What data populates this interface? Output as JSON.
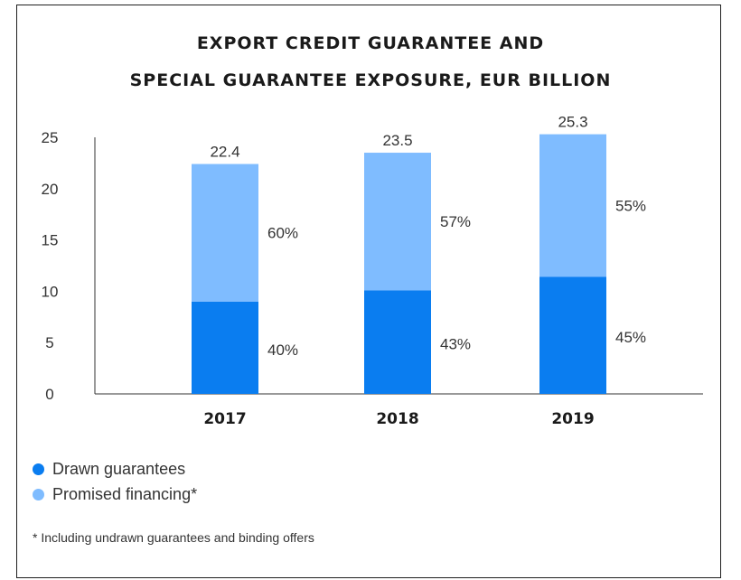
{
  "chart_data": {
    "type": "bar",
    "stacked": true,
    "title": "EXPORT CREDIT GUARANTEE AND SPECIAL GUARANTEE EXPOSURE, EUR BILLION",
    "title_lines": [
      "EXPORT CREDIT GUARANTEE AND",
      "SPECIAL GUARANTEE EXPOSURE, EUR BILLION"
    ],
    "categories": [
      "2017",
      "2018",
      "2019"
    ],
    "totals": [
      22.4,
      23.5,
      25.3
    ],
    "total_labels": [
      "22.4",
      "23.5",
      "25.3"
    ],
    "series": [
      {
        "name": "Drawn guarantees",
        "color": "#0a7df0",
        "share_labels": [
          "40%",
          "43%",
          "45%"
        ],
        "values": [
          9.0,
          10.1,
          11.4
        ]
      },
      {
        "name": "Promised financing*",
        "color": "#7fbcff",
        "share_labels": [
          "60%",
          "57%",
          "55%"
        ],
        "values": [
          13.4,
          13.4,
          13.9
        ]
      }
    ],
    "ylim": [
      0,
      25
    ],
    "yticks": [
      "0",
      "5",
      "10",
      "15",
      "20",
      "25"
    ],
    "grid": false,
    "legend_position": "bottom-left",
    "footnote": "* Including undrawn guarantees and binding offers"
  }
}
